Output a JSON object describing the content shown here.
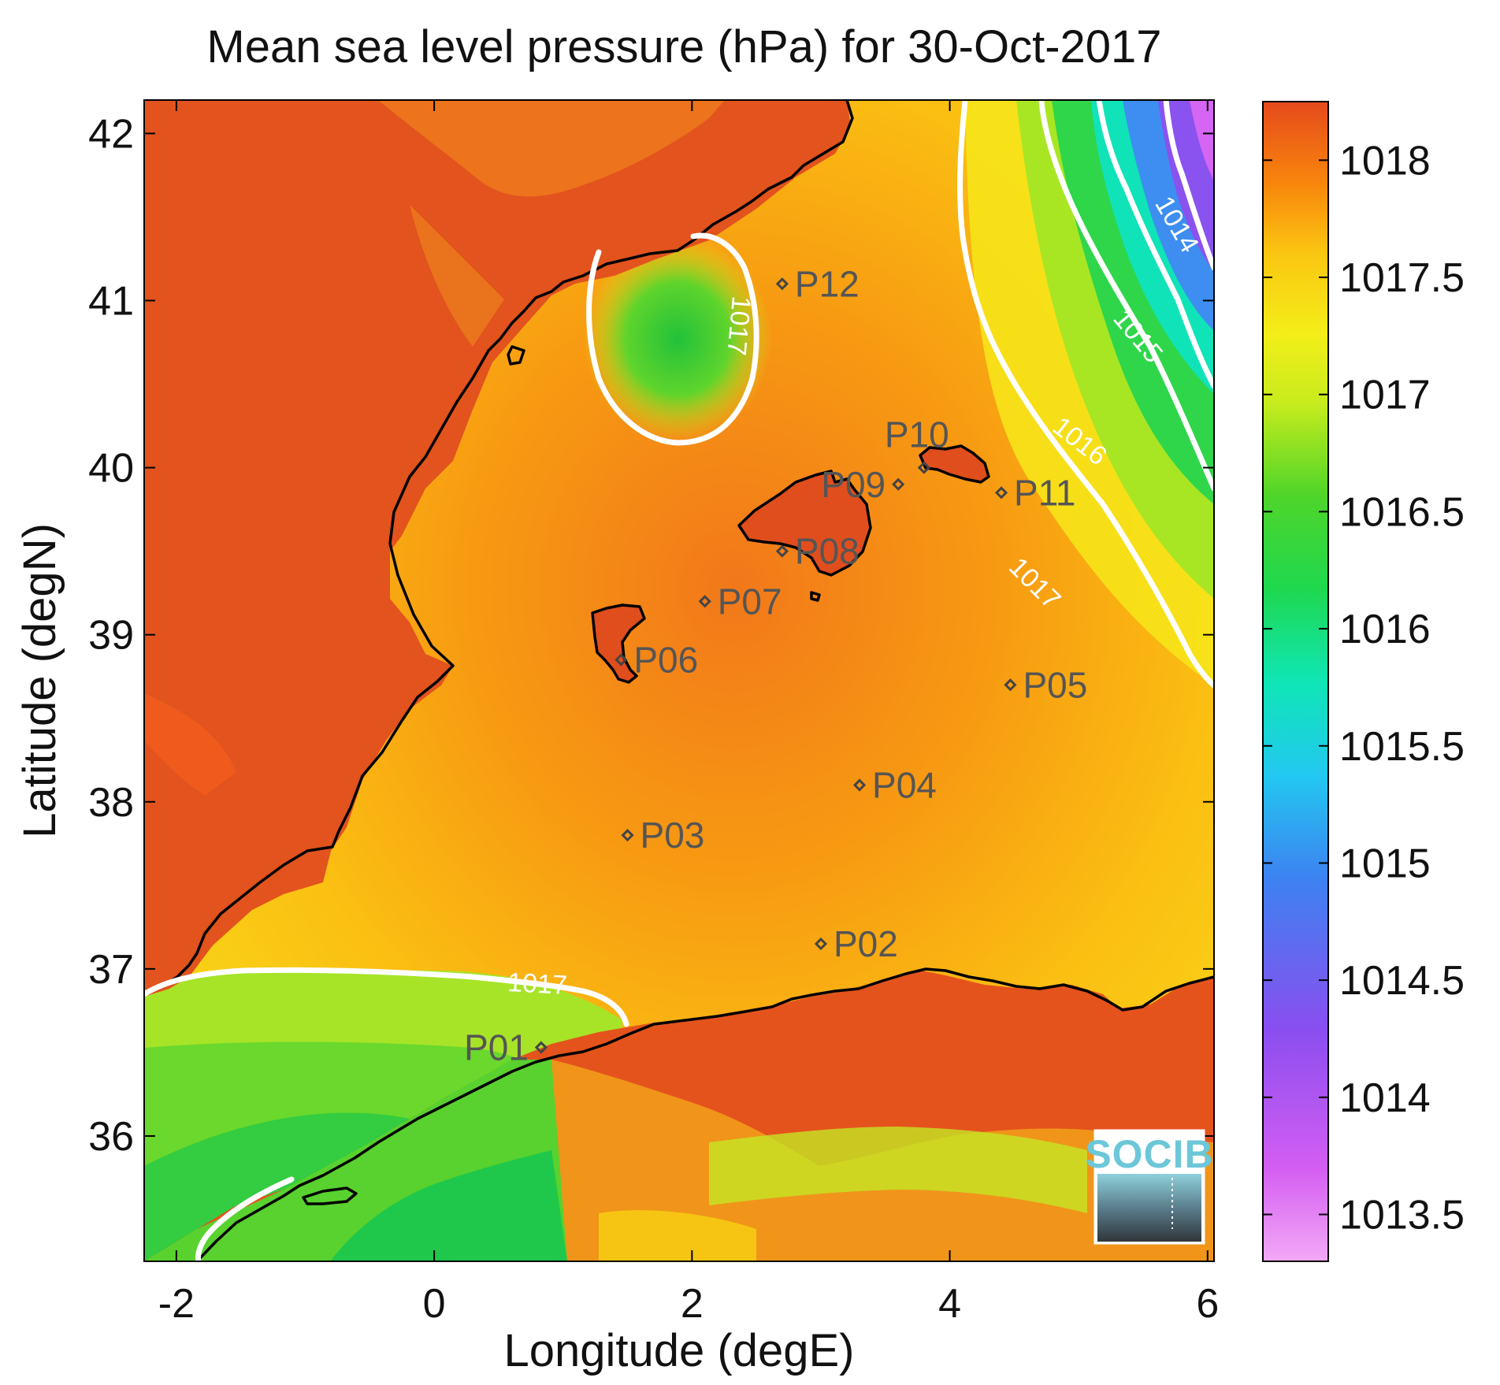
{
  "map": {
    "title": "Mean sea level pressure (hPa) for 30-Oct-2017",
    "xlabel": "Longitude (degE)",
    "ylabel": "Latitude (degN)",
    "lon_range": [
      -2.25,
      6.05
    ],
    "lat_range": [
      35.25,
      42.2
    ],
    "x_ticks": [
      -2,
      0,
      2,
      4,
      6
    ],
    "y_ticks": [
      36,
      37,
      38,
      39,
      40,
      41,
      42
    ],
    "colorbar": {
      "range": [
        1013.3,
        1018.25
      ],
      "ticks": [
        1013.5,
        1014,
        1014.5,
        1015,
        1015.5,
        1016,
        1016.5,
        1017,
        1017.5,
        1018
      ],
      "colors": [
        "#f29ef5",
        "#d45ef2",
        "#8a4ef0",
        "#3f7cf0",
        "#2ec6f4",
        "#0fe6c2",
        "#1ed96a",
        "#23d23a",
        "#7ade2a",
        "#e8f01a",
        "#fbd211",
        "#fb9f0c",
        "#f56a0d",
        "#e64a1c"
      ]
    },
    "contour_labels": [
      {
        "text": "1014",
        "lon": 5.75,
        "lat": 41.45,
        "angle": 60
      },
      {
        "text": "1015",
        "lon": 5.45,
        "lat": 40.78,
        "angle": 50
      },
      {
        "text": "1016",
        "lon": 5.0,
        "lat": 40.15,
        "angle": 38
      },
      {
        "text": "1017",
        "lon": 4.65,
        "lat": 39.3,
        "angle": 45
      },
      {
        "text": "1017",
        "lon": 2.35,
        "lat": 40.85,
        "angle": 95
      },
      {
        "text": "1017",
        "lon": 0.8,
        "lat": 36.9,
        "angle": 3
      }
    ],
    "stations": [
      {
        "id": "P01",
        "lon": 0.83,
        "lat": 36.53,
        "label_side": "left"
      },
      {
        "id": "P02",
        "lon": 3.0,
        "lat": 37.15,
        "label_side": "right"
      },
      {
        "id": "P03",
        "lon": 1.5,
        "lat": 37.8,
        "label_side": "right"
      },
      {
        "id": "P04",
        "lon": 3.3,
        "lat": 38.1,
        "label_side": "right"
      },
      {
        "id": "P05",
        "lon": 4.47,
        "lat": 38.7,
        "label_side": "right"
      },
      {
        "id": "P06",
        "lon": 1.45,
        "lat": 38.85,
        "label_side": "right"
      },
      {
        "id": "P07",
        "lon": 2.1,
        "lat": 39.2,
        "label_side": "right"
      },
      {
        "id": "P08",
        "lon": 2.7,
        "lat": 39.5,
        "label_side": "right"
      },
      {
        "id": "P09",
        "lon": 3.6,
        "lat": 39.9,
        "label_side": "left"
      },
      {
        "id": "P10",
        "lon": 3.8,
        "lat": 40.0,
        "label_side": "top"
      },
      {
        "id": "P11",
        "lon": 4.4,
        "lat": 39.85,
        "label_side": "right"
      },
      {
        "id": "P12",
        "lon": 2.7,
        "lat": 41.1,
        "label_side": "right"
      }
    ],
    "logo_text": "SOCIB"
  }
}
